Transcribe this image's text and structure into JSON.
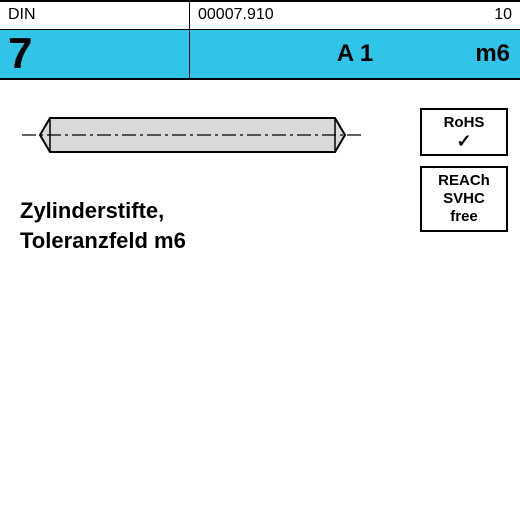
{
  "header": {
    "standard_label": "DIN",
    "part_number": "00007.910",
    "revision": "10",
    "standard_number": "7",
    "material": "A 1",
    "tolerance": "m6",
    "row2_bg": "#2fc4e8",
    "row1_bg": "#ffffff",
    "border_color": "#000000"
  },
  "pin": {
    "body_fill": "#d9d9d9",
    "body_stroke": "#000000",
    "body_stroke_width": 2,
    "centerline_color": "#000000",
    "centerline_dash": "14 4 3 4",
    "length": 305,
    "diameter": 34,
    "chamfer": 10
  },
  "badges": [
    {
      "lines": [
        "RoHS"
      ],
      "show_check": true
    },
    {
      "lines": [
        "REACh",
        "SVHC",
        "free"
      ],
      "show_check": false
    }
  ],
  "description": {
    "line1": "Zylinderstifte,",
    "line2": "Toleranzfeld m6",
    "color": "#000000",
    "fontsize": 22
  }
}
